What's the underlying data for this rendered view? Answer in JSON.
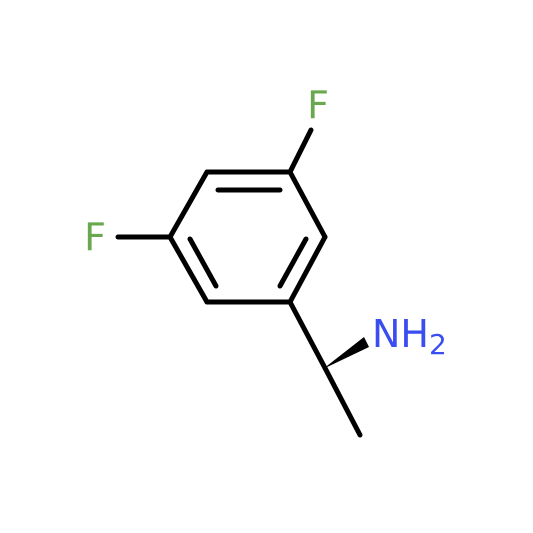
{
  "atoms": [
    {
      "label": "F"
    },
    {
      "label": "F"
    },
    {
      "label": "NH",
      "subscript": "2"
    }
  ]
}
